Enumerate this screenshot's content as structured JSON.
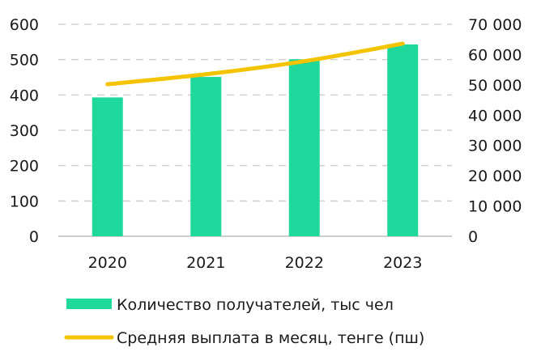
{
  "chart_data": {
    "type": "bar",
    "categories": [
      "2020",
      "2021",
      "2022",
      "2023"
    ],
    "series": [
      {
        "name": "Количество получателей, тыс чел",
        "type": "bar",
        "axis": "left",
        "color": "#1ed89c",
        "values": [
          393,
          451,
          501,
          543
        ]
      },
      {
        "name": "Средняя выплата в месяц, тенге (пш)",
        "type": "line",
        "axis": "right",
        "color": "#f5c400",
        "values": [
          50200,
          53500,
          57800,
          63600
        ]
      }
    ],
    "ylim_left": [
      0,
      600
    ],
    "yticks_left": [
      "0",
      "100",
      "200",
      "300",
      "400",
      "500",
      "600"
    ],
    "ylim_right": [
      0,
      70000
    ],
    "yticks_right": [
      "0",
      "10 000",
      "20 000",
      "30 000",
      "40 000",
      "50 000",
      "60 000",
      "70 000"
    ],
    "grid": true,
    "legend_position": "bottom"
  }
}
